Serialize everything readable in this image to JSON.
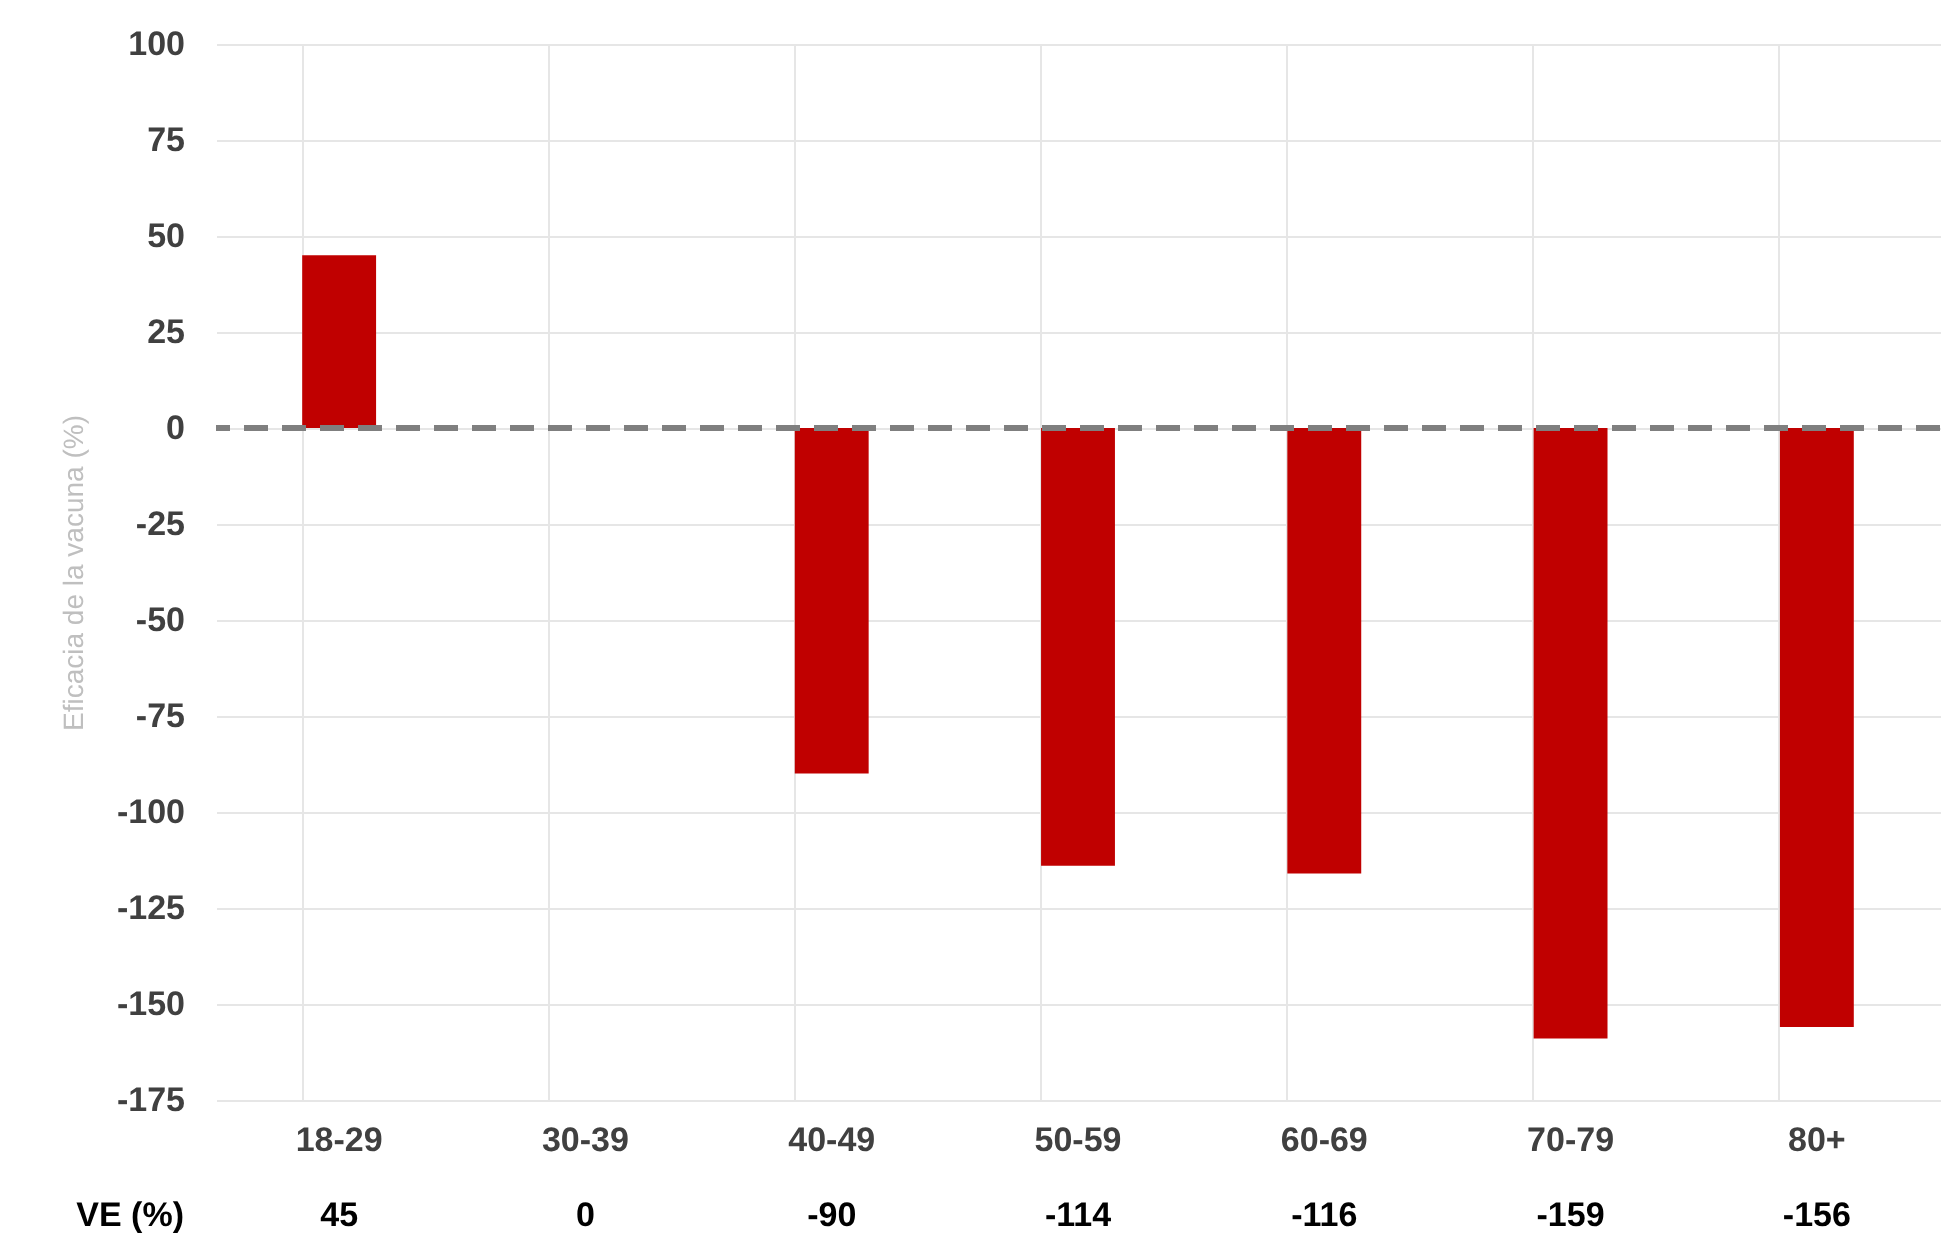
{
  "chart_data": {
    "type": "bar",
    "ylabel": "Eficacia de la vacuna (%)",
    "categories": [
      "18-29",
      "30-39",
      "40-49",
      "50-59",
      "60-69",
      "70-79",
      "80+"
    ],
    "values": [
      45,
      0,
      -90,
      -114,
      -116,
      -159,
      -156
    ],
    "color": "#c00000",
    "ylim": [
      -175,
      100
    ],
    "yticks": [
      -175,
      -150,
      -125,
      -100,
      -75,
      -50,
      -25,
      0,
      25,
      50,
      75,
      100
    ],
    "grid": true,
    "data_labels": true,
    "ref_lines": [
      {
        "axis": "y",
        "value": 0,
        "color": "#7f7f7f",
        "line_style": "dashed"
      }
    ],
    "annotations": [
      "VE (%)"
    ]
  }
}
